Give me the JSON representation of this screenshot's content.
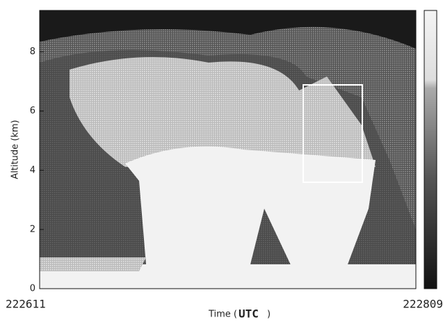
{
  "chart_data": {
    "type": "image",
    "ylabel": "Altitude (km)",
    "xlabel_parts": [
      "Time (",
      "UTC",
      ")"
    ],
    "x_labels": [
      "222611",
      "222809"
    ],
    "ylim": [
      0,
      9.4
    ],
    "yticks": [
      0,
      2,
      4,
      6,
      8
    ]
  }
}
